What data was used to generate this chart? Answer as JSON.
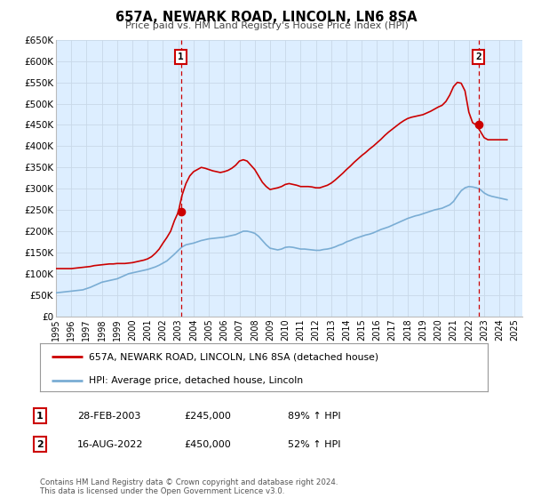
{
  "title": "657A, NEWARK ROAD, LINCOLN, LN6 8SA",
  "subtitle": "Price paid vs. HM Land Registry's House Price Index (HPI)",
  "background_color": "#ffffff",
  "plot_bg_color": "#ddeeff",
  "grid_color": "#c8d8e8",
  "ylim": [
    0,
    650000
  ],
  "xlim_start": 1995.0,
  "xlim_end": 2025.5,
  "ytick_labels": [
    "£0",
    "£50K",
    "£100K",
    "£150K",
    "£200K",
    "£250K",
    "£300K",
    "£350K",
    "£400K",
    "£450K",
    "£500K",
    "£550K",
    "£600K",
    "£650K"
  ],
  "ytick_values": [
    0,
    50000,
    100000,
    150000,
    200000,
    250000,
    300000,
    350000,
    400000,
    450000,
    500000,
    550000,
    600000,
    650000
  ],
  "xtick_years": [
    1995,
    1996,
    1997,
    1998,
    1999,
    2000,
    2001,
    2002,
    2003,
    2004,
    2005,
    2006,
    2007,
    2008,
    2009,
    2010,
    2011,
    2012,
    2013,
    2014,
    2015,
    2016,
    2017,
    2018,
    2019,
    2020,
    2021,
    2022,
    2023,
    2024,
    2025
  ],
  "hpi_color": "#7aadd4",
  "sale_color": "#cc0000",
  "marker1_date": 2003.167,
  "marker1_price": 245000,
  "marker2_date": 2022.625,
  "marker2_price": 450000,
  "vline_color": "#cc0000",
  "legend_label1": "657A, NEWARK ROAD, LINCOLN, LN6 8SA (detached house)",
  "legend_label2": "HPI: Average price, detached house, Lincoln",
  "table_row1": [
    "1",
    "28-FEB-2003",
    "£245,000",
    "89% ↑ HPI"
  ],
  "table_row2": [
    "2",
    "16-AUG-2022",
    "£450,000",
    "52% ↑ HPI"
  ],
  "footnote": "Contains HM Land Registry data © Crown copyright and database right 2024.\nThis data is licensed under the Open Government Licence v3.0.",
  "hpi_data_x": [
    1995.0,
    1995.25,
    1995.5,
    1995.75,
    1996.0,
    1996.25,
    1996.5,
    1996.75,
    1997.0,
    1997.25,
    1997.5,
    1997.75,
    1998.0,
    1998.25,
    1998.5,
    1998.75,
    1999.0,
    1999.25,
    1999.5,
    1999.75,
    2000.0,
    2000.25,
    2000.5,
    2000.75,
    2001.0,
    2001.25,
    2001.5,
    2001.75,
    2002.0,
    2002.25,
    2002.5,
    2002.75,
    2003.0,
    2003.25,
    2003.5,
    2003.75,
    2004.0,
    2004.25,
    2004.5,
    2004.75,
    2005.0,
    2005.25,
    2005.5,
    2005.75,
    2006.0,
    2006.25,
    2006.5,
    2006.75,
    2007.0,
    2007.25,
    2007.5,
    2007.75,
    2008.0,
    2008.25,
    2008.5,
    2008.75,
    2009.0,
    2009.25,
    2009.5,
    2009.75,
    2010.0,
    2010.25,
    2010.5,
    2010.75,
    2011.0,
    2011.25,
    2011.5,
    2011.75,
    2012.0,
    2012.25,
    2012.5,
    2012.75,
    2013.0,
    2013.25,
    2013.5,
    2013.75,
    2014.0,
    2014.25,
    2014.5,
    2014.75,
    2015.0,
    2015.25,
    2015.5,
    2015.75,
    2016.0,
    2016.25,
    2016.5,
    2016.75,
    2017.0,
    2017.25,
    2017.5,
    2017.75,
    2018.0,
    2018.25,
    2018.5,
    2018.75,
    2019.0,
    2019.25,
    2019.5,
    2019.75,
    2020.0,
    2020.25,
    2020.5,
    2020.75,
    2021.0,
    2021.25,
    2021.5,
    2021.75,
    2022.0,
    2022.25,
    2022.5,
    2022.75,
    2023.0,
    2023.25,
    2023.5,
    2023.75,
    2024.0,
    2024.25,
    2024.5
  ],
  "hpi_data_y": [
    55000,
    56000,
    57000,
    58000,
    59000,
    60000,
    61000,
    62000,
    65000,
    68000,
    72000,
    76000,
    80000,
    82000,
    84000,
    86000,
    88000,
    92000,
    96000,
    100000,
    102000,
    104000,
    106000,
    108000,
    110000,
    113000,
    116000,
    120000,
    125000,
    130000,
    138000,
    146000,
    155000,
    163000,
    168000,
    170000,
    172000,
    175000,
    178000,
    180000,
    182000,
    183000,
    184000,
    185000,
    186000,
    188000,
    190000,
    192000,
    196000,
    200000,
    200000,
    198000,
    195000,
    188000,
    178000,
    168000,
    160000,
    158000,
    156000,
    158000,
    162000,
    163000,
    162000,
    160000,
    158000,
    158000,
    157000,
    156000,
    155000,
    155000,
    157000,
    158000,
    160000,
    163000,
    167000,
    170000,
    175000,
    178000,
    182000,
    185000,
    188000,
    191000,
    193000,
    196000,
    200000,
    204000,
    207000,
    210000,
    214000,
    218000,
    222000,
    226000,
    230000,
    233000,
    236000,
    238000,
    241000,
    244000,
    247000,
    250000,
    252000,
    254000,
    258000,
    262000,
    270000,
    283000,
    295000,
    302000,
    305000,
    304000,
    302000,
    298000,
    290000,
    285000,
    282000,
    280000,
    278000,
    276000,
    274000
  ],
  "sale_data_x": [
    1995.0,
    1995.25,
    1995.5,
    1995.75,
    1996.0,
    1996.25,
    1996.5,
    1996.75,
    1997.0,
    1997.25,
    1997.5,
    1997.75,
    1998.0,
    1998.25,
    1998.5,
    1998.75,
    1999.0,
    1999.25,
    1999.5,
    1999.75,
    2000.0,
    2000.25,
    2000.5,
    2000.75,
    2001.0,
    2001.25,
    2001.5,
    2001.75,
    2002.0,
    2002.25,
    2002.5,
    2002.75,
    2003.0,
    2003.25,
    2003.5,
    2003.75,
    2004.0,
    2004.25,
    2004.5,
    2004.75,
    2005.0,
    2005.25,
    2005.5,
    2005.75,
    2006.0,
    2006.25,
    2006.5,
    2006.75,
    2007.0,
    2007.25,
    2007.5,
    2007.75,
    2008.0,
    2008.25,
    2008.5,
    2008.75,
    2009.0,
    2009.25,
    2009.5,
    2009.75,
    2010.0,
    2010.25,
    2010.5,
    2010.75,
    2011.0,
    2011.25,
    2011.5,
    2011.75,
    2012.0,
    2012.25,
    2012.5,
    2012.75,
    2013.0,
    2013.25,
    2013.5,
    2013.75,
    2014.0,
    2014.25,
    2014.5,
    2014.75,
    2015.0,
    2015.25,
    2015.5,
    2015.75,
    2016.0,
    2016.25,
    2016.5,
    2016.75,
    2017.0,
    2017.25,
    2017.5,
    2017.75,
    2018.0,
    2018.25,
    2018.5,
    2018.75,
    2019.0,
    2019.25,
    2019.5,
    2019.75,
    2020.0,
    2020.25,
    2020.5,
    2020.75,
    2021.0,
    2021.25,
    2021.5,
    2021.75,
    2022.0,
    2022.25,
    2022.5,
    2022.75,
    2023.0,
    2023.25,
    2023.5,
    2023.75,
    2024.0,
    2024.25,
    2024.5
  ],
  "sale_data_y": [
    112000,
    112000,
    112000,
    112000,
    112000,
    113000,
    114000,
    115000,
    116000,
    117000,
    119000,
    120000,
    121000,
    122000,
    123000,
    123000,
    124000,
    124000,
    124000,
    125000,
    126000,
    128000,
    130000,
    132000,
    135000,
    140000,
    148000,
    158000,
    172000,
    185000,
    200000,
    225000,
    245000,
    285000,
    312000,
    330000,
    340000,
    345000,
    350000,
    348000,
    345000,
    342000,
    340000,
    338000,
    340000,
    343000,
    348000,
    355000,
    365000,
    368000,
    365000,
    355000,
    345000,
    330000,
    315000,
    305000,
    298000,
    300000,
    302000,
    305000,
    310000,
    312000,
    310000,
    308000,
    305000,
    305000,
    305000,
    304000,
    302000,
    302000,
    305000,
    308000,
    313000,
    320000,
    328000,
    336000,
    345000,
    353000,
    362000,
    370000,
    378000,
    385000,
    393000,
    400000,
    408000,
    416000,
    425000,
    433000,
    440000,
    447000,
    454000,
    460000,
    465000,
    468000,
    470000,
    472000,
    474000,
    478000,
    482000,
    487000,
    492000,
    496000,
    505000,
    520000,
    540000,
    550000,
    548000,
    530000,
    480000,
    455000,
    450000,
    435000,
    420000,
    415000,
    415000,
    415000,
    415000,
    415000,
    415000
  ]
}
